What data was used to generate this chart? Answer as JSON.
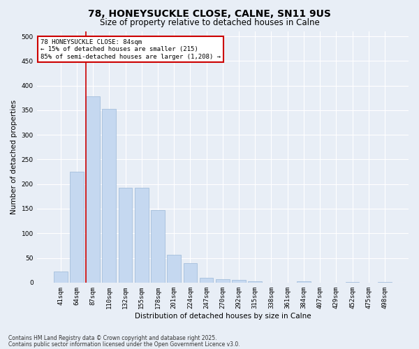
{
  "title": "78, HONEYSUCKLE CLOSE, CALNE, SN11 9US",
  "subtitle": "Size of property relative to detached houses in Calne",
  "xlabel": "Distribution of detached houses by size in Calne",
  "ylabel": "Number of detached properties",
  "categories": [
    "41sqm",
    "64sqm",
    "87sqm",
    "110sqm",
    "132sqm",
    "155sqm",
    "178sqm",
    "201sqm",
    "224sqm",
    "247sqm",
    "270sqm",
    "292sqm",
    "315sqm",
    "338sqm",
    "361sqm",
    "384sqm",
    "407sqm",
    "429sqm",
    "452sqm",
    "475sqm",
    "498sqm"
  ],
  "values": [
    22,
    225,
    378,
    352,
    192,
    192,
    147,
    56,
    40,
    10,
    7,
    5,
    3,
    0,
    0,
    2,
    0,
    0,
    1,
    0,
    1
  ],
  "bar_color": "#c5d8f0",
  "bar_edge_color": "#9ab8d8",
  "vline_color": "#cc0000",
  "vline_x": 1.575,
  "annotation_title": "78 HONEYSUCKLE CLOSE: 84sqm",
  "annotation_line1": "← 15% of detached houses are smaller (215)",
  "annotation_line2": "85% of semi-detached houses are larger (1,208) →",
  "annotation_box_color": "#ffffff",
  "annotation_box_edge": "#cc0000",
  "ylim": [
    0,
    510
  ],
  "yticks": [
    0,
    50,
    100,
    150,
    200,
    250,
    300,
    350,
    400,
    450,
    500
  ],
  "bg_color": "#e8eef6",
  "plot_bg_color": "#e8eef6",
  "grid_color": "#ffffff",
  "footer_line1": "Contains HM Land Registry data © Crown copyright and database right 2025.",
  "footer_line2": "Contains public sector information licensed under the Open Government Licence v3.0.",
  "title_fontsize": 10,
  "subtitle_fontsize": 8.5,
  "tick_fontsize": 6.5,
  "label_fontsize": 7.5,
  "annotation_fontsize": 6.5,
  "footer_fontsize": 5.5
}
